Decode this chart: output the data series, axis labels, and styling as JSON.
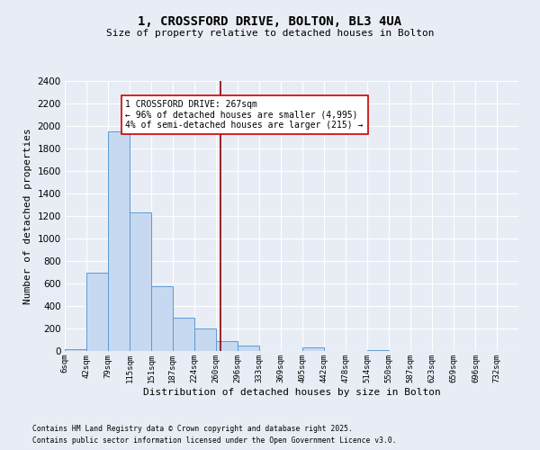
{
  "title": "1, CROSSFORD DRIVE, BOLTON, BL3 4UA",
  "subtitle": "Size of property relative to detached houses in Bolton",
  "xlabel": "Distribution of detached houses by size in Bolton",
  "ylabel": "Number of detached properties",
  "footnote1": "Contains HM Land Registry data © Crown copyright and database right 2025.",
  "footnote2": "Contains public sector information licensed under the Open Government Licence v3.0.",
  "bin_labels": [
    "6sqm",
    "42sqm",
    "79sqm",
    "115sqm",
    "151sqm",
    "187sqm",
    "224sqm",
    "260sqm",
    "296sqm",
    "333sqm",
    "369sqm",
    "405sqm",
    "442sqm",
    "478sqm",
    "514sqm",
    "550sqm",
    "587sqm",
    "623sqm",
    "659sqm",
    "696sqm",
    "732sqm"
  ],
  "bar_values": [
    15,
    700,
    1950,
    1230,
    575,
    300,
    200,
    85,
    45,
    0,
    0,
    30,
    0,
    0,
    10,
    0,
    0,
    0,
    0,
    0
  ],
  "bar_color": "#c6d9f1",
  "bar_edge_color": "#5b9bd5",
  "bg_color": "#e8edf5",
  "grid_color": "#ffffff",
  "vline_x": 267,
  "vline_color": "#8b0000",
  "annotation_line1": "1 CROSSFORD DRIVE: 267sqm",
  "annotation_line2": "← 96% of detached houses are smaller (4,995)",
  "annotation_line3": "4% of semi-detached houses are larger (215) →",
  "annotation_box_color": "#ffffff",
  "annotation_border_color": "#cc0000",
  "ylim": [
    0,
    2400
  ],
  "yticks": [
    0,
    200,
    400,
    600,
    800,
    1000,
    1200,
    1400,
    1600,
    1800,
    2000,
    2200,
    2400
  ],
  "bin_edges": [
    6,
    42,
    79,
    115,
    151,
    187,
    224,
    260,
    296,
    333,
    369,
    405,
    442,
    478,
    514,
    550,
    587,
    623,
    659,
    696,
    732
  ]
}
